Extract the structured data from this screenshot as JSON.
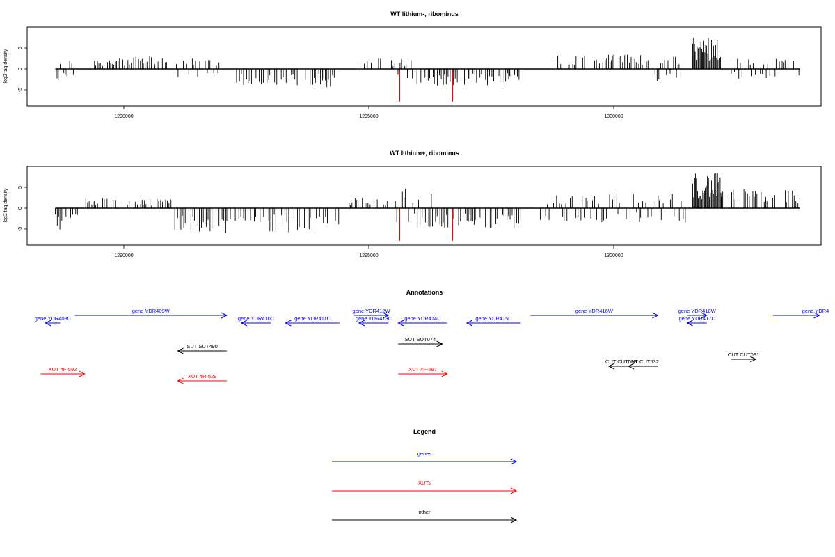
{
  "colors": {
    "gene": "#0000ff",
    "xut": "#ff0000",
    "other": "#000000",
    "highlight": "#ff0000"
  },
  "chart_data": [
    {
      "type": "bar",
      "title": "WT lithium-, ribominus",
      "ylabel": "log2 tag density",
      "xlim": [
        1288200,
        1303900
      ],
      "ylim": [
        -8,
        9
      ],
      "x_ticks": [
        1290000,
        1295000,
        1300000
      ],
      "y_ticks": [
        -5,
        0,
        5
      ],
      "red_markers": [
        1295630,
        1296710
      ],
      "series_profile": [
        {
          "from": 1288600,
          "to": 1289000,
          "amp": 3.0,
          "sign": "mixed"
        },
        {
          "from": 1289400,
          "to": 1290200,
          "amp": 2.5,
          "sign": "pos"
        },
        {
          "from": 1290200,
          "to": 1290900,
          "amp": 3.2,
          "sign": "pos"
        },
        {
          "from": 1291000,
          "to": 1292000,
          "amp": 2.5,
          "sign": "mixed"
        },
        {
          "from": 1292300,
          "to": 1294400,
          "amp": 4.5,
          "sign": "neg"
        },
        {
          "from": 1294800,
          "to": 1295300,
          "amp": 3.0,
          "sign": "pos"
        },
        {
          "from": 1295400,
          "to": 1295900,
          "amp": 2.5,
          "sign": "mixed"
        },
        {
          "from": 1295900,
          "to": 1298100,
          "amp": 4.0,
          "sign": "neg"
        },
        {
          "from": 1298800,
          "to": 1300700,
          "amp": 3.5,
          "sign": "pos"
        },
        {
          "from": 1300700,
          "to": 1301400,
          "amp": 3.0,
          "sign": "mixed"
        },
        {
          "from": 1301600,
          "to": 1302200,
          "amp": 8.0,
          "sign": "pos"
        },
        {
          "from": 1302400,
          "to": 1303800,
          "amp": 2.5,
          "sign": "mixed"
        }
      ]
    },
    {
      "type": "bar",
      "title": "WT lithium+, ribominus",
      "ylabel": "log2 tag density",
      "xlim": [
        1288200,
        1303900
      ],
      "ylim": [
        -8,
        9
      ],
      "x_ticks": [
        1290000,
        1295000,
        1300000
      ],
      "y_ticks": [
        -5,
        0,
        5
      ],
      "red_markers": [
        1295630,
        1296710
      ],
      "series_profile": [
        {
          "from": 1288600,
          "to": 1289100,
          "amp": 5.5,
          "sign": "neg"
        },
        {
          "from": 1289200,
          "to": 1291000,
          "amp": 2.5,
          "sign": "pos"
        },
        {
          "from": 1291000,
          "to": 1294400,
          "amp": 6.0,
          "sign": "neg"
        },
        {
          "from": 1294600,
          "to": 1295400,
          "amp": 2.5,
          "sign": "pos"
        },
        {
          "from": 1295500,
          "to": 1296300,
          "amp": 5.0,
          "sign": "mixed"
        },
        {
          "from": 1296300,
          "to": 1298100,
          "amp": 5.0,
          "sign": "neg"
        },
        {
          "from": 1298500,
          "to": 1301500,
          "amp": 3.5,
          "sign": "mixed"
        },
        {
          "from": 1301600,
          "to": 1302200,
          "amp": 8.5,
          "sign": "pos"
        },
        {
          "from": 1302200,
          "to": 1303800,
          "amp": 4.5,
          "sign": "pos"
        }
      ]
    }
  ],
  "annotations": {
    "title": "Annotations",
    "features": [
      {
        "label": "gene YDR408C",
        "start": 1288400,
        "end": 1288700,
        "strand": "-",
        "cls": "gene",
        "row": 1
      },
      {
        "label": "gene YDR409W",
        "start": 1289000,
        "end": 1292100,
        "strand": "+",
        "cls": "gene",
        "row": 0
      },
      {
        "label": "gene YDR410C",
        "start": 1292400,
        "end": 1293000,
        "strand": "-",
        "cls": "gene",
        "row": 1
      },
      {
        "label": "gene YDR411C",
        "start": 1293300,
        "end": 1294400,
        "strand": "-",
        "cls": "gene",
        "row": 1
      },
      {
        "label": "gene YDR412W",
        "start": 1294700,
        "end": 1295400,
        "strand": "+",
        "cls": "gene",
        "row": 0
      },
      {
        "label": "gene YDR413C",
        "start": 1294800,
        "end": 1295400,
        "strand": "-",
        "cls": "gene",
        "row": 1
      },
      {
        "label": "gene YDR414C",
        "start": 1295600,
        "end": 1296600,
        "strand": "-",
        "cls": "gene",
        "row": 1
      },
      {
        "label": "gene YDR415C",
        "start": 1297000,
        "end": 1298100,
        "strand": "-",
        "cls": "gene",
        "row": 1
      },
      {
        "label": "gene YDR416W",
        "start": 1298300,
        "end": 1300900,
        "strand": "+",
        "cls": "gene",
        "row": 0
      },
      {
        "label": "gene YDR418W",
        "start": 1301500,
        "end": 1301900,
        "strand": "+",
        "cls": "gene",
        "row": 0
      },
      {
        "label": "gene YDR417C",
        "start": 1301500,
        "end": 1301900,
        "strand": "-",
        "cls": "gene",
        "row": 1
      },
      {
        "label": "gene YDR4",
        "start": 1303250,
        "end": 1304200,
        "strand": "+",
        "cls": "gene",
        "row": 0
      },
      {
        "label": "SUT SUT490",
        "start": 1291100,
        "end": 1292100,
        "strand": "-",
        "cls": "other",
        "row": 4
      },
      {
        "label": "SUT SUT074",
        "start": 1295600,
        "end": 1296500,
        "strand": "+",
        "cls": "other",
        "row": 3
      },
      {
        "label": "CUT CUT093",
        "start": 1299900,
        "end": 1300400,
        "strand": "-",
        "cls": "other",
        "row": 6
      },
      {
        "label": "CUT CUT532",
        "start": 1300300,
        "end": 1300900,
        "strand": "-",
        "cls": "other",
        "row": 6
      },
      {
        "label": "CUT CUT091",
        "start": 1302400,
        "end": 1302900,
        "strand": "+",
        "cls": "other",
        "row": 5
      },
      {
        "label": "XUT 4F-592",
        "start": 1288300,
        "end": 1289200,
        "strand": "+",
        "cls": "xut",
        "row": 7
      },
      {
        "label": "XUT 4R-529",
        "start": 1291100,
        "end": 1292100,
        "strand": "-",
        "cls": "xut",
        "row": 8
      },
      {
        "label": "XUT 4F-597",
        "start": 1295600,
        "end": 1296600,
        "strand": "+",
        "cls": "xut",
        "row": 7
      }
    ]
  },
  "legend": {
    "title": "Legend",
    "items": [
      {
        "label": "genes",
        "cls": "gene"
      },
      {
        "label": "XUTs",
        "cls": "xut"
      },
      {
        "label": "other",
        "cls": "other"
      }
    ]
  }
}
